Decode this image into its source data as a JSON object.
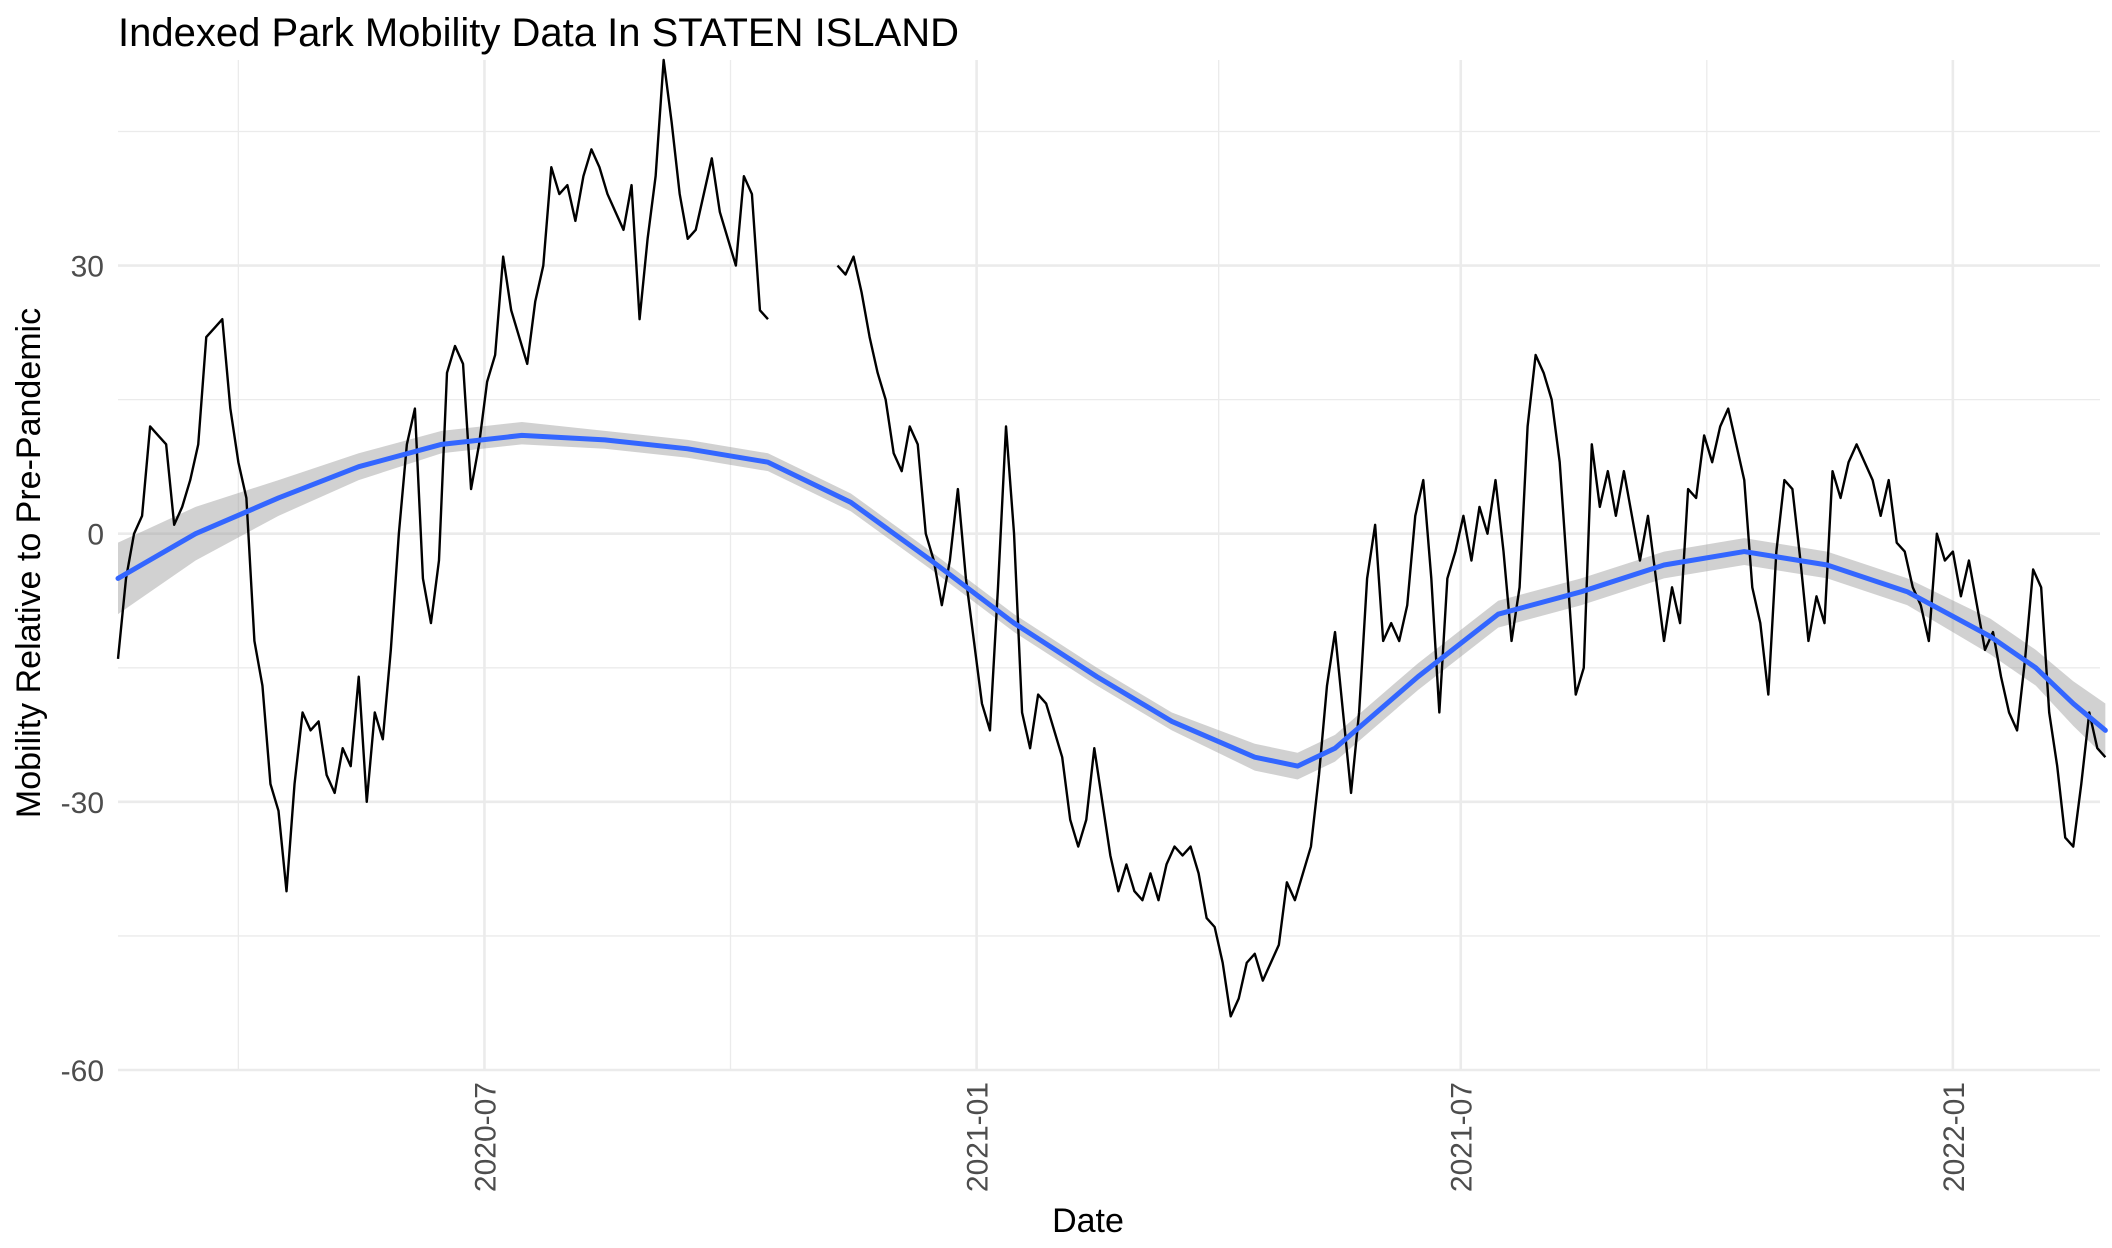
{
  "chart_data": {
    "type": "line",
    "title": "Indexed Park Mobility Data In STATEN ISLAND",
    "xlabel": "Date",
    "ylabel": "Mobility Relative to Pre-Pandemic",
    "xlim": [
      "2020-02-15",
      "2022-02-25"
    ],
    "ylim": [
      -60,
      53
    ],
    "x_ticks": [
      "2020-07-01",
      "2021-01-01",
      "2021-07-01",
      "2022-01-01"
    ],
    "x_tick_labels": [
      "2020-07",
      "2021-01",
      "2021-07",
      "2022-01"
    ],
    "y_ticks": [
      -60,
      -30,
      0,
      30
    ],
    "y_tick_labels": [
      "-60",
      "-30",
      "0",
      "30"
    ],
    "grid": true,
    "legend": "none",
    "series": [
      {
        "type": "line",
        "color": "#000000",
        "points": [
          [
            "2020-02-15",
            -14
          ],
          [
            "2020-02-18",
            -5
          ],
          [
            "2020-02-21",
            0
          ],
          [
            "2020-02-24",
            2
          ],
          [
            "2020-02-27",
            12
          ],
          [
            "2020-03-01",
            11
          ],
          [
            "2020-03-04",
            10
          ],
          [
            "2020-03-07",
            1
          ],
          [
            "2020-03-10",
            3
          ],
          [
            "2020-03-13",
            6
          ],
          [
            "2020-03-16",
            10
          ],
          [
            "2020-03-19",
            22
          ],
          [
            "2020-03-22",
            23
          ],
          [
            "2020-03-25",
            24
          ],
          [
            "2020-03-28",
            14
          ],
          [
            "2020-03-31",
            8
          ],
          [
            "2020-04-03",
            4
          ],
          [
            "2020-04-06",
            -12
          ],
          [
            "2020-04-09",
            -17
          ],
          [
            "2020-04-12",
            -28
          ],
          [
            "2020-04-15",
            -31
          ],
          [
            "2020-04-18",
            -40
          ],
          [
            "2020-04-21",
            -28
          ],
          [
            "2020-04-24",
            -20
          ],
          [
            "2020-04-27",
            -22
          ],
          [
            "2020-04-30",
            -21
          ],
          [
            "2020-05-03",
            -27
          ],
          [
            "2020-05-06",
            -29
          ],
          [
            "2020-05-09",
            -24
          ],
          [
            "2020-05-12",
            -26
          ],
          [
            "2020-05-15",
            -16
          ],
          [
            "2020-05-18",
            -30
          ],
          [
            "2020-05-21",
            -20
          ],
          [
            "2020-05-24",
            -23
          ],
          [
            "2020-05-27",
            -13
          ],
          [
            "2020-05-30",
            0
          ],
          [
            "2020-06-02",
            10
          ],
          [
            "2020-06-05",
            14
          ],
          [
            "2020-06-08",
            -5
          ],
          [
            "2020-06-11",
            -10
          ],
          [
            "2020-06-14",
            -3
          ],
          [
            "2020-06-17",
            18
          ],
          [
            "2020-06-20",
            21
          ],
          [
            "2020-06-23",
            19
          ],
          [
            "2020-06-26",
            5
          ],
          [
            "2020-06-29",
            10
          ],
          [
            "2020-07-02",
            17
          ],
          [
            "2020-07-05",
            20
          ],
          [
            "2020-07-08",
            31
          ],
          [
            "2020-07-11",
            25
          ],
          [
            "2020-07-14",
            22
          ],
          [
            "2020-07-17",
            19
          ],
          [
            "2020-07-20",
            26
          ],
          [
            "2020-07-23",
            30
          ],
          [
            "2020-07-26",
            41
          ],
          [
            "2020-07-29",
            38
          ],
          [
            "2020-08-01",
            39
          ],
          [
            "2020-08-04",
            35
          ],
          [
            "2020-08-07",
            40
          ],
          [
            "2020-08-10",
            43
          ],
          [
            "2020-08-13",
            41
          ],
          [
            "2020-08-16",
            38
          ],
          [
            "2020-08-19",
            36
          ],
          [
            "2020-08-22",
            34
          ],
          [
            "2020-08-25",
            39
          ],
          [
            "2020-08-28",
            24
          ],
          [
            "2020-08-31",
            33
          ],
          [
            "2020-09-03",
            40
          ],
          [
            "2020-09-06",
            53
          ],
          [
            "2020-09-09",
            46
          ],
          [
            "2020-09-12",
            38
          ],
          [
            "2020-09-15",
            33
          ],
          [
            "2020-09-18",
            34
          ],
          [
            "2020-09-21",
            38
          ],
          [
            "2020-09-24",
            42
          ],
          [
            "2020-09-27",
            36
          ],
          [
            "2020-09-30",
            33
          ],
          [
            "2020-10-03",
            30
          ],
          [
            "2020-10-06",
            40
          ],
          [
            "2020-10-09",
            38
          ],
          [
            "2020-10-12",
            25
          ],
          [
            "2020-10-15",
            24
          ],
          null,
          [
            "2020-11-10",
            30
          ],
          [
            "2020-11-13",
            29
          ],
          [
            "2020-11-16",
            31
          ],
          [
            "2020-11-19",
            27
          ],
          [
            "2020-11-22",
            22
          ],
          [
            "2020-11-25",
            18
          ],
          [
            "2020-11-28",
            15
          ],
          [
            "2020-12-01",
            9
          ],
          [
            "2020-12-04",
            7
          ],
          [
            "2020-12-07",
            12
          ],
          [
            "2020-12-10",
            10
          ],
          [
            "2020-12-13",
            0
          ],
          [
            "2020-12-16",
            -3
          ],
          [
            "2020-12-19",
            -8
          ],
          [
            "2020-12-22",
            -3
          ],
          [
            "2020-12-25",
            5
          ],
          [
            "2020-12-28",
            -5
          ],
          [
            "2020-12-31",
            -12
          ],
          [
            "2021-01-03",
            -19
          ],
          [
            "2021-01-06",
            -22
          ],
          [
            "2021-01-09",
            -6
          ],
          [
            "2021-01-12",
            12
          ],
          [
            "2021-01-15",
            0
          ],
          [
            "2021-01-18",
            -20
          ],
          [
            "2021-01-21",
            -24
          ],
          [
            "2021-01-24",
            -18
          ],
          [
            "2021-01-27",
            -19
          ],
          [
            "2021-01-30",
            -22
          ],
          [
            "2021-02-02",
            -25
          ],
          [
            "2021-02-05",
            -32
          ],
          [
            "2021-02-08",
            -35
          ],
          [
            "2021-02-11",
            -32
          ],
          [
            "2021-02-14",
            -24
          ],
          [
            "2021-02-17",
            -30
          ],
          [
            "2021-02-20",
            -36
          ],
          [
            "2021-02-23",
            -40
          ],
          [
            "2021-02-26",
            -37
          ],
          [
            "2021-03-01",
            -40
          ],
          [
            "2021-03-04",
            -41
          ],
          [
            "2021-03-07",
            -38
          ],
          [
            "2021-03-10",
            -41
          ],
          [
            "2021-03-13",
            -37
          ],
          [
            "2021-03-16",
            -35
          ],
          [
            "2021-03-19",
            -36
          ],
          [
            "2021-03-22",
            -35
          ],
          [
            "2021-03-25",
            -38
          ],
          [
            "2021-03-28",
            -43
          ],
          [
            "2021-03-31",
            -44
          ],
          [
            "2021-04-03",
            -48
          ],
          [
            "2021-04-06",
            -54
          ],
          [
            "2021-04-09",
            -52
          ],
          [
            "2021-04-12",
            -48
          ],
          [
            "2021-04-15",
            -47
          ],
          [
            "2021-04-18",
            -50
          ],
          [
            "2021-04-21",
            -48
          ],
          [
            "2021-04-24",
            -46
          ],
          [
            "2021-04-27",
            -39
          ],
          [
            "2021-04-30",
            -41
          ],
          [
            "2021-05-03",
            -38
          ],
          [
            "2021-05-06",
            -35
          ],
          [
            "2021-05-09",
            -27
          ],
          [
            "2021-05-12",
            -17
          ],
          [
            "2021-05-15",
            -11
          ],
          [
            "2021-05-18",
            -20
          ],
          [
            "2021-05-21",
            -29
          ],
          [
            "2021-05-24",
            -20
          ],
          [
            "2021-05-27",
            -5
          ],
          [
            "2021-05-30",
            1
          ],
          [
            "2021-06-02",
            -12
          ],
          [
            "2021-06-05",
            -10
          ],
          [
            "2021-06-08",
            -12
          ],
          [
            "2021-06-11",
            -8
          ],
          [
            "2021-06-14",
            2
          ],
          [
            "2021-06-17",
            6
          ],
          [
            "2021-06-20",
            -5
          ],
          [
            "2021-06-23",
            -20
          ],
          [
            "2021-06-26",
            -5
          ],
          [
            "2021-06-29",
            -2
          ],
          [
            "2021-07-02",
            2
          ],
          [
            "2021-07-05",
            -3
          ],
          [
            "2021-07-08",
            3
          ],
          [
            "2021-07-11",
            0
          ],
          [
            "2021-07-14",
            6
          ],
          [
            "2021-07-17",
            -2
          ],
          [
            "2021-07-20",
            -12
          ],
          [
            "2021-07-23",
            -6
          ],
          [
            "2021-07-26",
            12
          ],
          [
            "2021-07-29",
            20
          ],
          [
            "2021-08-01",
            18
          ],
          [
            "2021-08-04",
            15
          ],
          [
            "2021-08-07",
            8
          ],
          [
            "2021-08-10",
            -5
          ],
          [
            "2021-08-13",
            -18
          ],
          [
            "2021-08-16",
            -15
          ],
          [
            "2021-08-19",
            10
          ],
          [
            "2021-08-22",
            3
          ],
          [
            "2021-08-25",
            7
          ],
          [
            "2021-08-28",
            2
          ],
          [
            "2021-08-31",
            7
          ],
          [
            "2021-09-03",
            2
          ],
          [
            "2021-09-06",
            -3
          ],
          [
            "2021-09-09",
            2
          ],
          [
            "2021-09-12",
            -5
          ],
          [
            "2021-09-15",
            -12
          ],
          [
            "2021-09-18",
            -6
          ],
          [
            "2021-09-21",
            -10
          ],
          [
            "2021-09-24",
            5
          ],
          [
            "2021-09-27",
            4
          ],
          [
            "2021-09-30",
            11
          ],
          [
            "2021-10-03",
            8
          ],
          [
            "2021-10-06",
            12
          ],
          [
            "2021-10-09",
            14
          ],
          [
            "2021-10-12",
            10
          ],
          [
            "2021-10-15",
            6
          ],
          [
            "2021-10-18",
            -6
          ],
          [
            "2021-10-21",
            -10
          ],
          [
            "2021-10-24",
            -18
          ],
          [
            "2021-10-27",
            -2
          ],
          [
            "2021-10-30",
            6
          ],
          [
            "2021-11-02",
            5
          ],
          [
            "2021-11-05",
            -3
          ],
          [
            "2021-11-08",
            -12
          ],
          [
            "2021-11-11",
            -7
          ],
          [
            "2021-11-14",
            -10
          ],
          [
            "2021-11-17",
            7
          ],
          [
            "2021-11-20",
            4
          ],
          [
            "2021-11-23",
            8
          ],
          [
            "2021-11-26",
            10
          ],
          [
            "2021-11-29",
            8
          ],
          [
            "2021-12-02",
            6
          ],
          [
            "2021-12-05",
            2
          ],
          [
            "2021-12-08",
            6
          ],
          [
            "2021-12-11",
            -1
          ],
          [
            "2021-12-14",
            -2
          ],
          [
            "2021-12-17",
            -6
          ],
          [
            "2021-12-20",
            -8
          ],
          [
            "2021-12-23",
            -12
          ],
          [
            "2021-12-26",
            0
          ],
          [
            "2021-12-29",
            -3
          ],
          [
            "2022-01-01",
            -2
          ],
          [
            "2022-01-04",
            -7
          ],
          [
            "2022-01-07",
            -3
          ],
          [
            "2022-01-10",
            -8
          ],
          [
            "2022-01-13",
            -13
          ],
          [
            "2022-01-16",
            -11
          ],
          [
            "2022-01-19",
            -16
          ],
          [
            "2022-01-22",
            -20
          ],
          [
            "2022-01-25",
            -22
          ],
          [
            "2022-01-28",
            -14
          ],
          [
            "2022-01-31",
            -4
          ],
          [
            "2022-02-03",
            -6
          ],
          [
            "2022-02-06",
            -20
          ],
          [
            "2022-02-09",
            -26
          ],
          [
            "2022-02-12",
            -34
          ],
          [
            "2022-02-15",
            -35
          ],
          [
            "2022-02-18",
            -28
          ],
          [
            "2022-02-21",
            -20
          ],
          [
            "2022-02-24",
            -24
          ],
          [
            "2022-02-27",
            -25
          ]
        ]
      },
      {
        "type": "smooth",
        "color": "#3366FF",
        "band_color": "#999999",
        "points": [
          [
            "2020-02-15",
            -5,
            -9,
            -1
          ],
          [
            "2020-03-15",
            0,
            -3,
            3
          ],
          [
            "2020-04-15",
            4,
            2,
            6
          ],
          [
            "2020-05-15",
            7.5,
            6,
            9
          ],
          [
            "2020-06-15",
            10,
            9,
            11.5
          ],
          [
            "2020-07-15",
            11,
            10,
            12.5
          ],
          [
            "2020-08-15",
            10.5,
            9.5,
            11.5
          ],
          [
            "2020-09-15",
            9.5,
            8.5,
            10.5
          ],
          [
            "2020-10-15",
            8,
            7,
            9
          ],
          [
            "2020-11-15",
            3.5,
            2.5,
            4.5
          ],
          [
            "2020-12-15",
            -3,
            -4,
            -2
          ],
          [
            "2021-01-15",
            -10,
            -11,
            -9
          ],
          [
            "2021-02-15",
            -16,
            -17,
            -15
          ],
          [
            "2021-03-15",
            -21,
            -22,
            -20
          ],
          [
            "2021-04-15",
            -25,
            -26.5,
            -23.5
          ],
          [
            "2021-05-01",
            -26,
            -27.5,
            -24.5
          ],
          [
            "2021-05-15",
            -24,
            -25.5,
            -22.5
          ],
          [
            "2021-06-15",
            -16,
            -17.5,
            -14.5
          ],
          [
            "2021-07-15",
            -9,
            -10.5,
            -7.5
          ],
          [
            "2021-08-15",
            -6.5,
            -8,
            -5
          ],
          [
            "2021-09-15",
            -3.5,
            -5,
            -2
          ],
          [
            "2021-10-15",
            -2,
            -3.5,
            -0.5
          ],
          [
            "2021-11-15",
            -3.5,
            -5,
            -2
          ],
          [
            "2021-12-15",
            -6.5,
            -8,
            -5
          ],
          [
            "2022-01-15",
            -11.5,
            -13.5,
            -9.5
          ],
          [
            "2022-02-01",
            -15,
            -17,
            -13
          ],
          [
            "2022-02-15",
            -19,
            -21.5,
            -16.5
          ],
          [
            "2022-02-27",
            -22,
            -25,
            -19
          ]
        ]
      }
    ]
  }
}
